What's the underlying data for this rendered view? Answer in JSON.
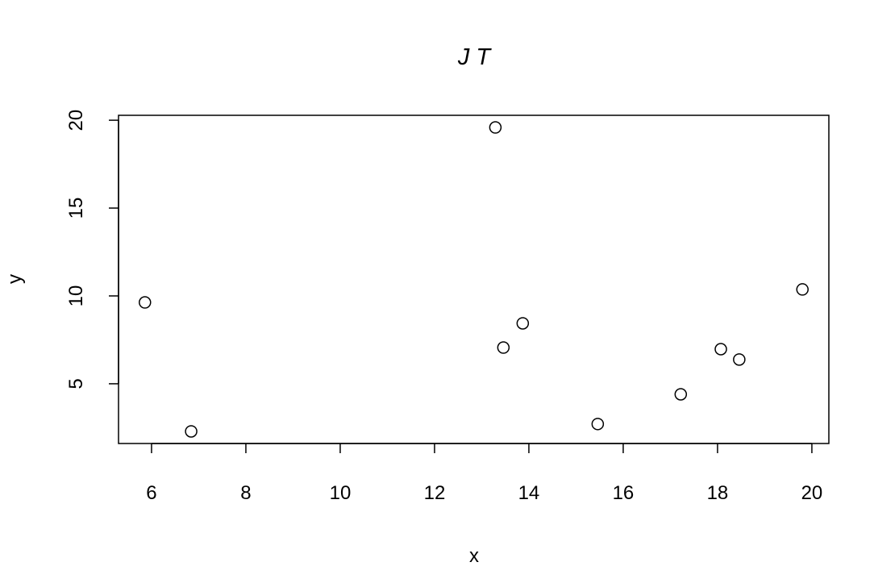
{
  "chart_data": {
    "type": "scatter",
    "title": "J T",
    "xlabel": "x",
    "ylabel": "y",
    "xlim": [
      5.3,
      20.36
    ],
    "ylim": [
      1.6,
      20.28
    ],
    "x_ticks": [
      6,
      8,
      10,
      12,
      14,
      16,
      18,
      20
    ],
    "y_ticks": [
      5,
      10,
      15,
      20
    ],
    "grid": false,
    "marker": "open-circle",
    "points": [
      {
        "x": 5.86,
        "y": 9.63
      },
      {
        "x": 6.84,
        "y": 2.29
      },
      {
        "x": 13.29,
        "y": 19.59
      },
      {
        "x": 13.46,
        "y": 7.06
      },
      {
        "x": 13.87,
        "y": 8.44
      },
      {
        "x": 15.46,
        "y": 2.71
      },
      {
        "x": 17.22,
        "y": 4.4
      },
      {
        "x": 18.07,
        "y": 6.97
      },
      {
        "x": 18.46,
        "y": 6.38
      },
      {
        "x": 19.8,
        "y": 10.37
      }
    ]
  }
}
